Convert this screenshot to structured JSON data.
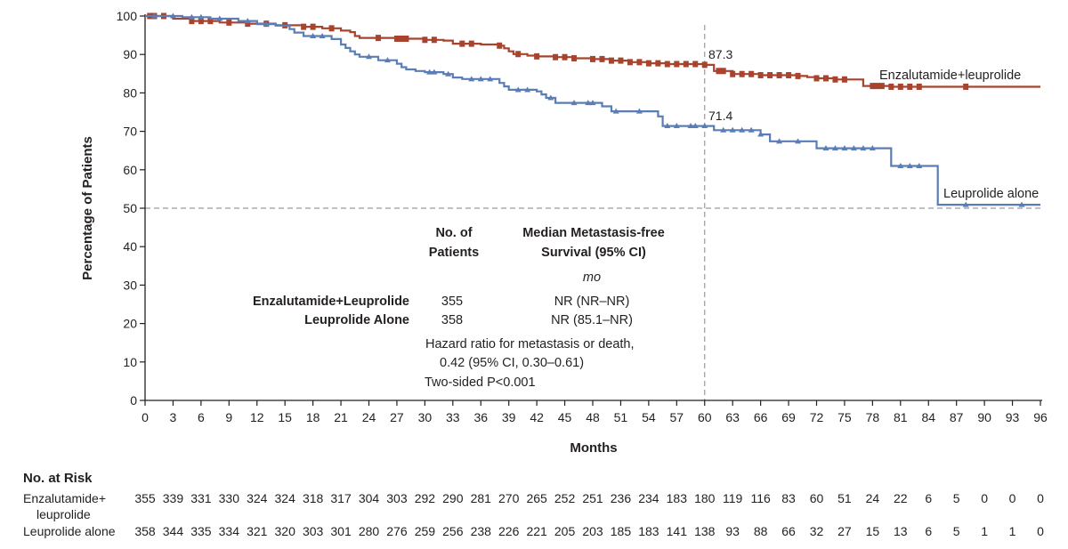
{
  "chart_data": {
    "type": "line",
    "subtype": "kaplan-meier",
    "xlabel": "Months",
    "ylabel": "Percentage of Patients",
    "xlim": [
      0,
      96
    ],
    "ylim": [
      0,
      100
    ],
    "xticks": [
      0,
      3,
      6,
      9,
      12,
      15,
      18,
      21,
      24,
      27,
      30,
      33,
      36,
      39,
      42,
      45,
      48,
      51,
      54,
      57,
      60,
      63,
      66,
      69,
      72,
      75,
      78,
      81,
      84,
      87,
      90,
      93,
      96
    ],
    "yticks": [
      0,
      10,
      20,
      30,
      40,
      50,
      60,
      70,
      80,
      90,
      100
    ],
    "reference_lines": {
      "horizontal_y": 50,
      "vertical_x": 60
    },
    "series": [
      {
        "name": "Enzalutamide+leuprolide",
        "color": "#a8432e",
        "marker": "square",
        "x": [
          0,
          3,
          5,
          8,
          11,
          14,
          17,
          19,
          21,
          22,
          22.5,
          23,
          24,
          26,
          27,
          30,
          32,
          33,
          36,
          38,
          38.5,
          39,
          39.5,
          41,
          42,
          44,
          46,
          48,
          50,
          52,
          54,
          56,
          60,
          61,
          63,
          66,
          70,
          71,
          72,
          74,
          77,
          80,
          84,
          96
        ],
        "y": [
          100,
          99.3,
          98.7,
          98.3,
          98.0,
          97.6,
          97.2,
          96.8,
          96.2,
          95.8,
          94.8,
          94.3,
          94.3,
          94.3,
          94.1,
          93.8,
          93.6,
          92.8,
          92.6,
          92.3,
          91.6,
          90.8,
          90.1,
          89.7,
          89.5,
          89.3,
          89.0,
          88.8,
          88.4,
          88.0,
          87.7,
          87.5,
          87.3,
          85.7,
          84.9,
          84.6,
          84.4,
          84.1,
          83.8,
          83.5,
          81.8,
          81.6,
          81.6,
          81.6
        ],
        "censor_marks_x": [
          0.5,
          1,
          2,
          5,
          6,
          7,
          9,
          11,
          13,
          15,
          17,
          18,
          20,
          25,
          27,
          27.5,
          28,
          30,
          31,
          34,
          35,
          38,
          40,
          42,
          44,
          45,
          46,
          48,
          49,
          50,
          51,
          52,
          53,
          54,
          55,
          56,
          57,
          58,
          59,
          60,
          61.5,
          62,
          63,
          64,
          65,
          66,
          67,
          68,
          69,
          70,
          72,
          73,
          74,
          75,
          78,
          78.5,
          79,
          80,
          81,
          82,
          83,
          88
        ]
      },
      {
        "name": "Leuprolide alone",
        "color": "#5b7db5",
        "marker": "triangle",
        "x": [
          0,
          4,
          7,
          10,
          12,
          14,
          15.5,
          16,
          17,
          20,
          21,
          21.5,
          22,
          22.5,
          23,
          25,
          27,
          27.5,
          28,
          29,
          30,
          32,
          33,
          34,
          38,
          38.5,
          39,
          42,
          42.5,
          43,
          44,
          47,
          49,
          50,
          54,
          55,
          55.5,
          58,
          60,
          61,
          66,
          67,
          71,
          72,
          80,
          85,
          96
        ],
        "y": [
          100,
          99.7,
          99.3,
          98.7,
          97.9,
          97.5,
          96.6,
          95.7,
          94.8,
          94.0,
          92.6,
          91.7,
          90.8,
          90.0,
          89.4,
          88.5,
          87.6,
          86.7,
          86.1,
          85.7,
          85.4,
          84.9,
          84.0,
          83.6,
          82.6,
          81.7,
          80.8,
          80.4,
          79.6,
          78.7,
          77.4,
          77.4,
          76.5,
          75.2,
          75.2,
          73.9,
          71.4,
          71.4,
          71.4,
          70.3,
          69.2,
          67.4,
          67.4,
          65.6,
          61.0,
          50.9,
          50.9
        ],
        "censor_marks_x": [
          1,
          3,
          5,
          6,
          8,
          11,
          13,
          18,
          19,
          24,
          26,
          30.5,
          31,
          32.5,
          35,
          36,
          37,
          40,
          41,
          43.5,
          46,
          47.5,
          48,
          50.5,
          53,
          56,
          57,
          58.5,
          59,
          60,
          62,
          63,
          64,
          65,
          66,
          68,
          70,
          73,
          74,
          75,
          76,
          77,
          78,
          81,
          82,
          83,
          88,
          94
        ]
      }
    ],
    "annotations": [
      {
        "x": 60,
        "y": 87.3,
        "text": "87.3"
      },
      {
        "x": 60,
        "y": 71.4,
        "text": "71.4"
      }
    ]
  },
  "legend_table": {
    "col1_header": [
      "No. of",
      "Patients"
    ],
    "col2_header": [
      "Median Metastasis-free",
      "Survival (95% CI)"
    ],
    "unit": "mo",
    "rows": [
      {
        "label": "Enzalutamide+Leuprolide",
        "n": "355",
        "median": "NR (NR–NR)"
      },
      {
        "label": "Leuprolide Alone",
        "n": "358",
        "median": "NR (85.1–NR)"
      }
    ],
    "hazard_lines": [
      "Hazard ratio for metastasis or death,",
      "0.42 (95% CI, 0.30–0.61)"
    ],
    "p_value": "Two-sided P<0.001"
  },
  "risk_table": {
    "title": "No. at Risk",
    "rows": [
      {
        "label_lines": [
          "Enzalutamide+",
          "leuprolide"
        ],
        "values": [
          "355",
          "339",
          "331",
          "330",
          "324",
          "324",
          "318",
          "317",
          "304",
          "303",
          "292",
          "290",
          "281",
          "270",
          "265",
          "252",
          "251",
          "236",
          "234",
          "183",
          "180",
          "119",
          "116",
          "83",
          "60",
          "51",
          "24",
          "22",
          "6",
          "5",
          "0",
          "0",
          "0"
        ]
      },
      {
        "label_lines": [
          "Leuprolide alone"
        ],
        "values": [
          "358",
          "344",
          "335",
          "334",
          "321",
          "320",
          "303",
          "301",
          "280",
          "276",
          "259",
          "256",
          "238",
          "226",
          "221",
          "205",
          "203",
          "185",
          "183",
          "141",
          "138",
          "93",
          "88",
          "66",
          "32",
          "27",
          "15",
          "13",
          "6",
          "5",
          "1",
          "1",
          "0"
        ]
      }
    ]
  }
}
